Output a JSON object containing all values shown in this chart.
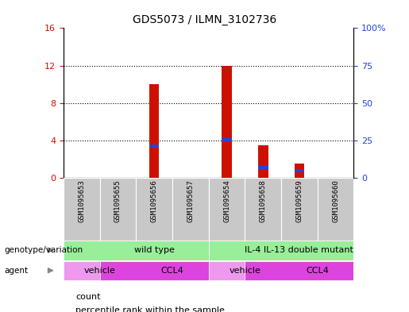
{
  "title": "GDS5073 / ILMN_3102736",
  "samples": [
    "GSM1095653",
    "GSM1095655",
    "GSM1095656",
    "GSM1095657",
    "GSM1095654",
    "GSM1095658",
    "GSM1095659",
    "GSM1095660"
  ],
  "count_values": [
    0,
    0,
    10,
    0,
    12,
    3.5,
    1.5,
    0
  ],
  "percentile_values_left_scale": [
    0,
    0,
    3.4,
    0,
    4.1,
    1.1,
    0.75,
    0
  ],
  "left_ylim": [
    0,
    16
  ],
  "left_yticks": [
    0,
    4,
    8,
    12,
    16
  ],
  "right_ylim": [
    0,
    100
  ],
  "right_yticks": [
    0,
    25,
    50,
    75,
    100
  ],
  "right_yticklabels": [
    "0",
    "25",
    "50",
    "75",
    "100%"
  ],
  "bar_color": "#cc1100",
  "percentile_color": "#2244dd",
  "bg_color": "#ffffff",
  "label_bg": "#c8c8c8",
  "genotype_color": "#99ee99",
  "agent_vehicle_color": "#ee99ee",
  "agent_ccl4_color": "#dd44dd",
  "genotype_groups": [
    {
      "label": "wild type",
      "start": 0,
      "end": 4
    },
    {
      "label": "IL-4 IL-13 double mutant",
      "start": 4,
      "end": 8
    }
  ],
  "agent_groups": [
    {
      "label": "vehicle",
      "start": 0,
      "end": 1
    },
    {
      "label": "CCL4",
      "start": 1,
      "end": 4
    },
    {
      "label": "vehicle",
      "start": 4,
      "end": 5
    },
    {
      "label": "CCL4",
      "start": 5,
      "end": 8
    }
  ],
  "left_tick_color": "#cc1100",
  "right_tick_color": "#2244dd",
  "arrow_color": "#888888"
}
